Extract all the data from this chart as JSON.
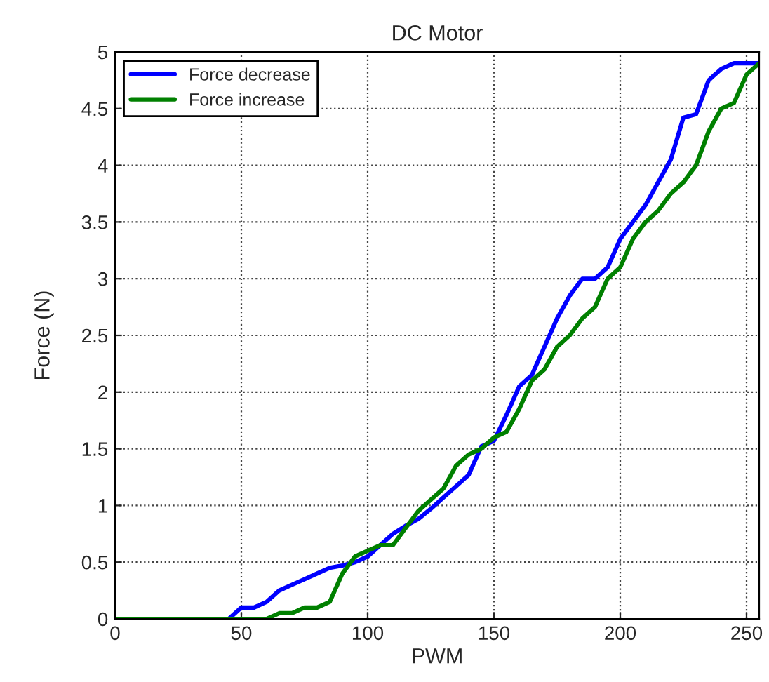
{
  "chart_data": {
    "type": "line",
    "title": "DC Motor",
    "xlabel": "PWM",
    "ylabel": "Force (N)",
    "series": [
      {
        "name": "Force decrease",
        "color": "#0000ff",
        "x": [
          0,
          45,
          50,
          55,
          60,
          65,
          70,
          75,
          80,
          85,
          90,
          95,
          100,
          105,
          110,
          115,
          120,
          125,
          130,
          135,
          140,
          145,
          150,
          155,
          160,
          165,
          170,
          175,
          180,
          185,
          190,
          195,
          200,
          205,
          210,
          215,
          220,
          225,
          230,
          235,
          240,
          245,
          250,
          255
        ],
        "values": [
          0,
          0,
          0.1,
          0.1,
          0.15,
          0.25,
          0.3,
          0.35,
          0.4,
          0.45,
          0.47,
          0.5,
          0.55,
          0.65,
          0.75,
          0.82,
          0.88,
          0.97,
          1.07,
          1.17,
          1.27,
          1.52,
          1.57,
          1.8,
          2.05,
          2.15,
          2.4,
          2.65,
          2.85,
          3.0,
          3.0,
          3.1,
          3.35,
          3.5,
          3.65,
          3.85,
          4.05,
          4.42,
          4.45,
          4.75,
          4.85,
          4.9,
          4.9,
          4.9
        ]
      },
      {
        "name": "Force increase",
        "color": "#008000",
        "x": [
          0,
          60,
          65,
          70,
          75,
          80,
          85,
          90,
          95,
          100,
          105,
          110,
          115,
          120,
          125,
          130,
          135,
          140,
          145,
          150,
          155,
          160,
          165,
          170,
          175,
          180,
          185,
          190,
          195,
          200,
          205,
          210,
          215,
          220,
          225,
          230,
          235,
          240,
          245,
          250,
          255
        ],
        "values": [
          0,
          0,
          0.05,
          0.05,
          0.1,
          0.1,
          0.15,
          0.4,
          0.55,
          0.6,
          0.65,
          0.65,
          0.8,
          0.95,
          1.05,
          1.15,
          1.35,
          1.45,
          1.5,
          1.6,
          1.65,
          1.85,
          2.1,
          2.2,
          2.4,
          2.5,
          2.65,
          2.75,
          3.0,
          3.1,
          3.35,
          3.5,
          3.6,
          3.75,
          3.85,
          4.0,
          4.3,
          4.5,
          4.55,
          4.8,
          4.9
        ]
      }
    ],
    "xlim": [
      0,
      255
    ],
    "xticks": [
      0,
      50,
      100,
      150,
      200,
      250
    ],
    "ylim": [
      0,
      5
    ],
    "yticks": [
      0,
      0.5,
      1,
      1.5,
      2,
      2.5,
      3,
      3.5,
      4,
      4.5,
      5
    ],
    "grid": true,
    "legend": "top left",
    "line_style": "solid",
    "marker": "none"
  }
}
